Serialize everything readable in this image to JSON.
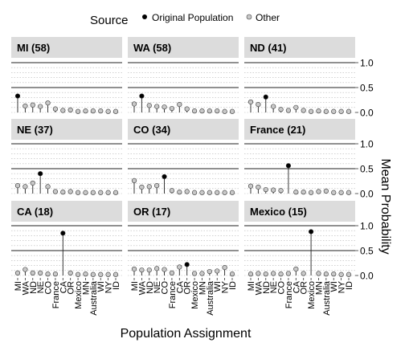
{
  "chart_data": {
    "type": "lollipop-facet",
    "legend": {
      "title": "Source",
      "position": "top",
      "entries": [
        {
          "label": "Original Population",
          "color": "#000000"
        },
        {
          "label": "Other",
          "color": "#c8c8c8"
        }
      ]
    },
    "xlabel": "Population Assignment",
    "ylabel": "Mean Probability",
    "ylim": [
      0,
      1.0
    ],
    "yticks": [
      "0.0",
      "0.5",
      "1.0"
    ],
    "grid": true,
    "categories": [
      "MI",
      "WA",
      "ND",
      "NE",
      "CO",
      "France",
      "CA",
      "OR",
      "Mexico",
      "MN",
      "Australia",
      "WI",
      "NY",
      "ID"
    ],
    "panels": [
      {
        "title": "MI (58)",
        "origin": "MI",
        "values": [
          0.33,
          0.13,
          0.15,
          0.12,
          0.19,
          0.07,
          0.04,
          0.05,
          0.02,
          0.03,
          0.03,
          0.03,
          0.02,
          0.02
        ]
      },
      {
        "title": "WA (58)",
        "origin": "WA",
        "values": [
          0.17,
          0.33,
          0.14,
          0.12,
          0.11,
          0.08,
          0.16,
          0.07,
          0.03,
          0.03,
          0.03,
          0.03,
          0.02,
          0.02
        ]
      },
      {
        "title": "ND (41)",
        "origin": "ND",
        "values": [
          0.21,
          0.16,
          0.31,
          0.12,
          0.06,
          0.04,
          0.1,
          0.04,
          0.02,
          0.03,
          0.02,
          0.02,
          0.02,
          0.02
        ]
      },
      {
        "title": "NE (37)",
        "origin": "NE",
        "values": [
          0.16,
          0.14,
          0.21,
          0.4,
          0.14,
          0.04,
          0.03,
          0.04,
          0.02,
          0.02,
          0.02,
          0.02,
          0.02,
          0.02
        ]
      },
      {
        "title": "CO (34)",
        "origin": "CO",
        "values": [
          0.26,
          0.13,
          0.14,
          0.16,
          0.34,
          0.06,
          0.03,
          0.04,
          0.02,
          0.02,
          0.02,
          0.02,
          0.02,
          0.02
        ]
      },
      {
        "title": "France (21)",
        "origin": "France",
        "values": [
          0.15,
          0.13,
          0.08,
          0.07,
          0.06,
          0.56,
          0.03,
          0.03,
          0.02,
          0.04,
          0.05,
          0.02,
          0.02,
          0.02
        ]
      },
      {
        "title": "CA (18)",
        "origin": "CA",
        "values": [
          0.05,
          0.12,
          0.05,
          0.05,
          0.03,
          0.03,
          0.85,
          0.05,
          0.02,
          0.03,
          0.02,
          0.02,
          0.02,
          0.02
        ]
      },
      {
        "title": "OR (17)",
        "origin": "OR",
        "values": [
          0.13,
          0.11,
          0.11,
          0.14,
          0.12,
          0.05,
          0.17,
          0.22,
          0.04,
          0.04,
          0.08,
          0.09,
          0.16,
          0.03
        ]
      },
      {
        "title": "Mexico (15)",
        "origin": "Mexico",
        "values": [
          0.03,
          0.04,
          0.03,
          0.04,
          0.03,
          0.04,
          0.13,
          0.04,
          0.88,
          0.04,
          0.03,
          0.03,
          0.02,
          0.02
        ]
      }
    ]
  }
}
